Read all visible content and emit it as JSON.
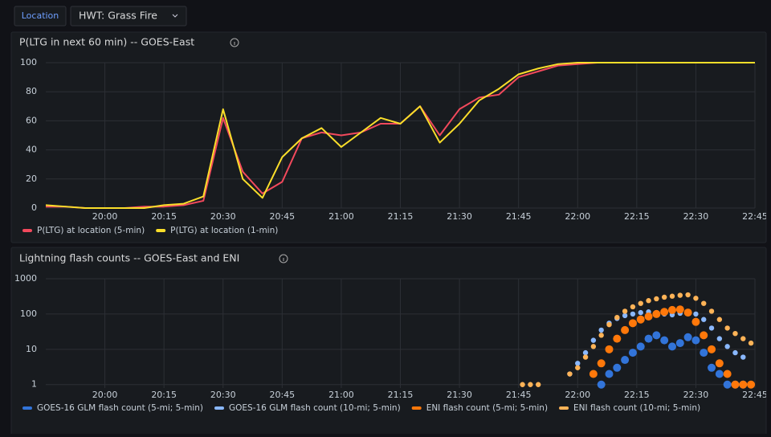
{
  "toolbar": {
    "button": "Location",
    "dropdown": "HWT: Grass Fire"
  },
  "chart_data": [
    {
      "type": "line",
      "title": "P(LTG in next 60 min) -- GOES-East",
      "x": [
        "19:45",
        "19:50",
        "19:55",
        "20:00",
        "20:05",
        "20:10",
        "20:15",
        "20:20",
        "20:25",
        "20:30",
        "20:35",
        "20:40",
        "20:45",
        "20:50",
        "20:55",
        "21:00",
        "21:05",
        "21:10",
        "21:15",
        "21:20",
        "21:25",
        "21:30",
        "21:35",
        "21:40",
        "21:45",
        "21:50",
        "21:55",
        "22:00",
        "22:05",
        "22:10",
        "22:15",
        "22:20",
        "22:25",
        "22:30",
        "22:35",
        "22:40",
        "22:45"
      ],
      "series": [
        {
          "name": "P(LTG) at location (5-min)",
          "color": "#f2495c",
          "values": [
            1,
            1,
            0,
            0,
            0,
            1,
            1,
            2,
            5,
            62,
            25,
            10,
            18,
            48,
            52,
            50,
            52,
            58,
            58,
            70,
            50,
            68,
            76,
            78,
            90,
            94,
            98,
            99,
            100,
            100,
            100,
            100,
            100,
            100,
            100,
            100,
            100
          ]
        },
        {
          "name": "P(LTG) at location (1-min)",
          "color": "#fade2a",
          "values": [
            2,
            1,
            0,
            0,
            0,
            0,
            2,
            3,
            8,
            68,
            20,
            7,
            35,
            48,
            55,
            42,
            52,
            62,
            58,
            70,
            45,
            58,
            74,
            82,
            92,
            96,
            99,
            100,
            100,
            100,
            100,
            100,
            100,
            100,
            100,
            100,
            100
          ]
        }
      ],
      "xlim": [
        "19:45",
        "22:45"
      ],
      "xticks": [
        "20:00",
        "20:15",
        "20:30",
        "20:45",
        "21:00",
        "21:15",
        "21:30",
        "21:45",
        "22:00",
        "22:15",
        "22:30",
        "22:45"
      ],
      "ylim": [
        0,
        100
      ],
      "yticks": [
        0,
        20,
        40,
        60,
        80,
        100
      ],
      "grid": true,
      "legend": "bottom-left"
    },
    {
      "type": "scatter",
      "title": "Lightning flash counts -- GOES-East and ENI",
      "x": [
        "21:44",
        "21:46",
        "21:48",
        "21:50",
        "21:52",
        "21:54",
        "21:56",
        "21:58",
        "22:00",
        "22:02",
        "22:04",
        "22:06",
        "22:08",
        "22:10",
        "22:12",
        "22:14",
        "22:16",
        "22:18",
        "22:20",
        "22:22",
        "22:24",
        "22:26",
        "22:28",
        "22:30",
        "22:32",
        "22:34",
        "22:36",
        "22:38",
        "22:40",
        "22:42",
        "22:44"
      ],
      "series": [
        {
          "name": "GOES-16 GLM flash count (5-mi; 5-min)",
          "color": "#3274d9",
          "values": [
            null,
            null,
            null,
            null,
            null,
            null,
            null,
            null,
            null,
            null,
            null,
            1,
            2,
            3,
            5,
            8,
            12,
            20,
            25,
            18,
            12,
            15,
            22,
            18,
            8,
            3,
            2,
            1,
            1,
            1,
            null
          ]
        },
        {
          "name": "GOES-16 GLM flash count (10-mi; 5-min)",
          "color": "#8ab8ff",
          "values": [
            null,
            null,
            null,
            null,
            null,
            null,
            null,
            2,
            4,
            8,
            18,
            35,
            55,
            75,
            90,
            100,
            110,
            115,
            110,
            100,
            95,
            105,
            110,
            100,
            70,
            40,
            20,
            12,
            8,
            6,
            null
          ]
        },
        {
          "name": "ENI flash count (5-mi; 5-min)",
          "color": "#ff780a",
          "values": [
            null,
            null,
            null,
            null,
            null,
            null,
            null,
            null,
            null,
            null,
            2,
            4,
            10,
            20,
            35,
            55,
            70,
            85,
            100,
            115,
            130,
            135,
            110,
            60,
            25,
            10,
            4,
            2,
            1,
            1,
            1
          ]
        },
        {
          "name": "ENI flash count (10-mi; 5-min)",
          "color": "#ffb357",
          "values": [
            null,
            1,
            1,
            1,
            null,
            null,
            null,
            2,
            3,
            6,
            12,
            25,
            50,
            80,
            120,
            160,
            200,
            240,
            270,
            300,
            320,
            340,
            350,
            280,
            200,
            120,
            70,
            40,
            28,
            20,
            15
          ]
        }
      ],
      "xlim": [
        "19:45",
        "22:45"
      ],
      "xticks": [
        "20:00",
        "20:15",
        "20:30",
        "20:45",
        "21:00",
        "21:15",
        "21:30",
        "21:45",
        "22:00",
        "22:15",
        "22:30",
        "22:45"
      ],
      "ylim": [
        0.8,
        1000
      ],
      "yticks": [
        1,
        10,
        100,
        1000
      ],
      "log_scale": true,
      "grid": true,
      "legend": "bottom-left"
    }
  ]
}
